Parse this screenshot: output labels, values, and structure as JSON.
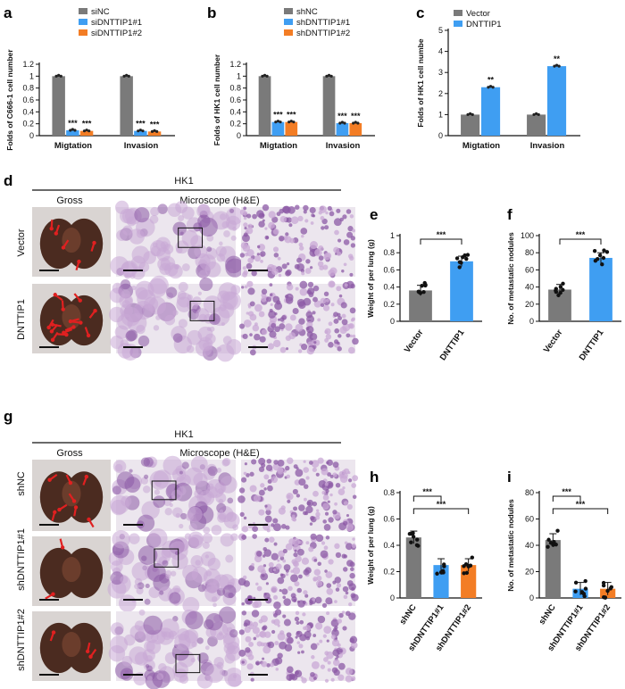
{
  "panel_letters": {
    "a": "a",
    "b": "b",
    "c": "c",
    "d": "d",
    "e": "e",
    "f": "f",
    "g": "g",
    "h": "h",
    "i": "i"
  },
  "colors": {
    "gray": "#7a7a7a",
    "blue": "#3f9ef2",
    "orange": "#f37d25",
    "tissue_bg": "#ece6ee",
    "tissue": "#c9a8d6",
    "tissue_dark": "#8c5aa6",
    "lung": "#4b2b20",
    "arrow": "#e02020"
  },
  "section_d": {
    "cohort": "HK1",
    "gross": "Gross",
    "microscope": "Microscope (H&E)",
    "rows": [
      "Vector",
      "DNTTIP1"
    ]
  },
  "section_g": {
    "cohort": "HK1",
    "gross": "Gross",
    "microscope": "Microscope (H&E)",
    "rows": [
      "shNC",
      "shDNTTIP1#1",
      "shDNTTIP1#2"
    ]
  },
  "chart_data": [
    {
      "id": "a",
      "type": "bar",
      "categories": [
        "Migtation",
        "Invasion"
      ],
      "ylabel": "Folds of C666-1 cell number",
      "ylim": [
        0,
        1.2
      ],
      "yticks": [
        0,
        0.2,
        0.4,
        0.6,
        0.8,
        1.0,
        1.2
      ],
      "legend": "top-right",
      "series": [
        {
          "name": "siNC",
          "color": "#7a7a7a",
          "values": [
            1.0,
            1.0
          ]
        },
        {
          "name": "siDNTTIP1#1",
          "color": "#3f9ef2",
          "values": [
            0.09,
            0.08
          ]
        },
        {
          "name": "siDNTTIP1#2",
          "color": "#f37d25",
          "values": [
            0.08,
            0.07
          ]
        }
      ],
      "annotations": [
        [
          "",
          "***",
          "***"
        ],
        [
          "",
          "***",
          "***"
        ]
      ]
    },
    {
      "id": "b",
      "type": "bar",
      "categories": [
        "Migtation",
        "Invasion"
      ],
      "ylabel": "Folds of HK1 cell number",
      "ylim": [
        0,
        1.2
      ],
      "yticks": [
        0,
        0.2,
        0.4,
        0.6,
        0.8,
        1.0,
        1.2
      ],
      "legend": "top-right",
      "series": [
        {
          "name": "shNC",
          "color": "#7a7a7a",
          "values": [
            1.0,
            1.0
          ]
        },
        {
          "name": "shDNTTIP1#1",
          "color": "#3f9ef2",
          "values": [
            0.23,
            0.21
          ]
        },
        {
          "name": "shDNTTIP1#2",
          "color": "#f37d25",
          "values": [
            0.23,
            0.21
          ]
        }
      ],
      "annotations": [
        [
          "",
          "***",
          "***"
        ],
        [
          "",
          "***",
          "***"
        ]
      ]
    },
    {
      "id": "c",
      "type": "bar",
      "categories": [
        "Migtation",
        "Invasion"
      ],
      "ylabel": "Folds of HK1 cell numbe",
      "ylim": [
        0,
        5
      ],
      "yticks": [
        0,
        1,
        2,
        3,
        4,
        5
      ],
      "legend": "top-left",
      "series": [
        {
          "name": "Vector",
          "color": "#7a7a7a",
          "values": [
            1.0,
            1.0
          ]
        },
        {
          "name": "DNTTIP1",
          "color": "#3f9ef2",
          "values": [
            2.3,
            3.3
          ]
        }
      ],
      "annotations": [
        [
          "",
          "**"
        ],
        [
          "",
          "**"
        ]
      ]
    },
    {
      "id": "e",
      "type": "bar",
      "categories": [
        "Vector",
        "DNTTIP1"
      ],
      "ylabel": "Weight of per lung (g)",
      "ylim": [
        0,
        1.0
      ],
      "yticks": [
        0,
        0.2,
        0.4,
        0.6,
        0.8,
        1.0
      ],
      "series": [
        {
          "color": "#7a7a7a",
          "values": [
            0.36,
            0.7
          ]
        }
      ],
      "bar_colors": [
        "#7a7a7a",
        "#3f9ef2"
      ],
      "comparisons": [
        {
          "from": 0,
          "to": 1,
          "label": "***"
        }
      ]
    },
    {
      "id": "f",
      "type": "bar",
      "categories": [
        "Vector",
        "DNTTIP1"
      ],
      "ylabel": "No. of metastatic nodules",
      "ylim": [
        0,
        100
      ],
      "yticks": [
        0,
        20,
        40,
        60,
        80,
        100
      ],
      "series": [
        {
          "color": "#7a7a7a",
          "values": [
            37,
            74
          ]
        }
      ],
      "bar_colors": [
        "#7a7a7a",
        "#3f9ef2"
      ],
      "comparisons": [
        {
          "from": 0,
          "to": 1,
          "label": "***"
        }
      ]
    },
    {
      "id": "h",
      "type": "bar",
      "categories": [
        "shNC",
        "shDNTTIP1#1",
        "shDNTTIP1#2"
      ],
      "ylabel": "Weight of per lung (g)",
      "ylim": [
        0,
        0.8
      ],
      "yticks": [
        0,
        0.2,
        0.4,
        0.6,
        0.8
      ],
      "series": [
        {
          "color": "#7a7a7a",
          "values": [
            0.46,
            0.25,
            0.25
          ]
        }
      ],
      "bar_colors": [
        "#7a7a7a",
        "#3f9ef2",
        "#f37d25"
      ],
      "comparisons": [
        {
          "from": 0,
          "to": 1,
          "label": "***"
        },
        {
          "from": 0,
          "to": 2,
          "label": "***"
        }
      ]
    },
    {
      "id": "i",
      "type": "bar",
      "categories": [
        "shNC",
        "shDNTTIP1#1",
        "shDNTTIP1#2"
      ],
      "ylabel": "No. of metastatic nodules",
      "ylim": [
        0,
        80
      ],
      "yticks": [
        0,
        20,
        40,
        60,
        80
      ],
      "series": [
        {
          "color": "#7a7a7a",
          "values": [
            44,
            7,
            7
          ]
        }
      ],
      "bar_colors": [
        "#7a7a7a",
        "#3f9ef2",
        "#f37d25"
      ],
      "comparisons": [
        {
          "from": 0,
          "to": 1,
          "label": "***"
        },
        {
          "from": 0,
          "to": 2,
          "label": "***"
        }
      ]
    }
  ]
}
